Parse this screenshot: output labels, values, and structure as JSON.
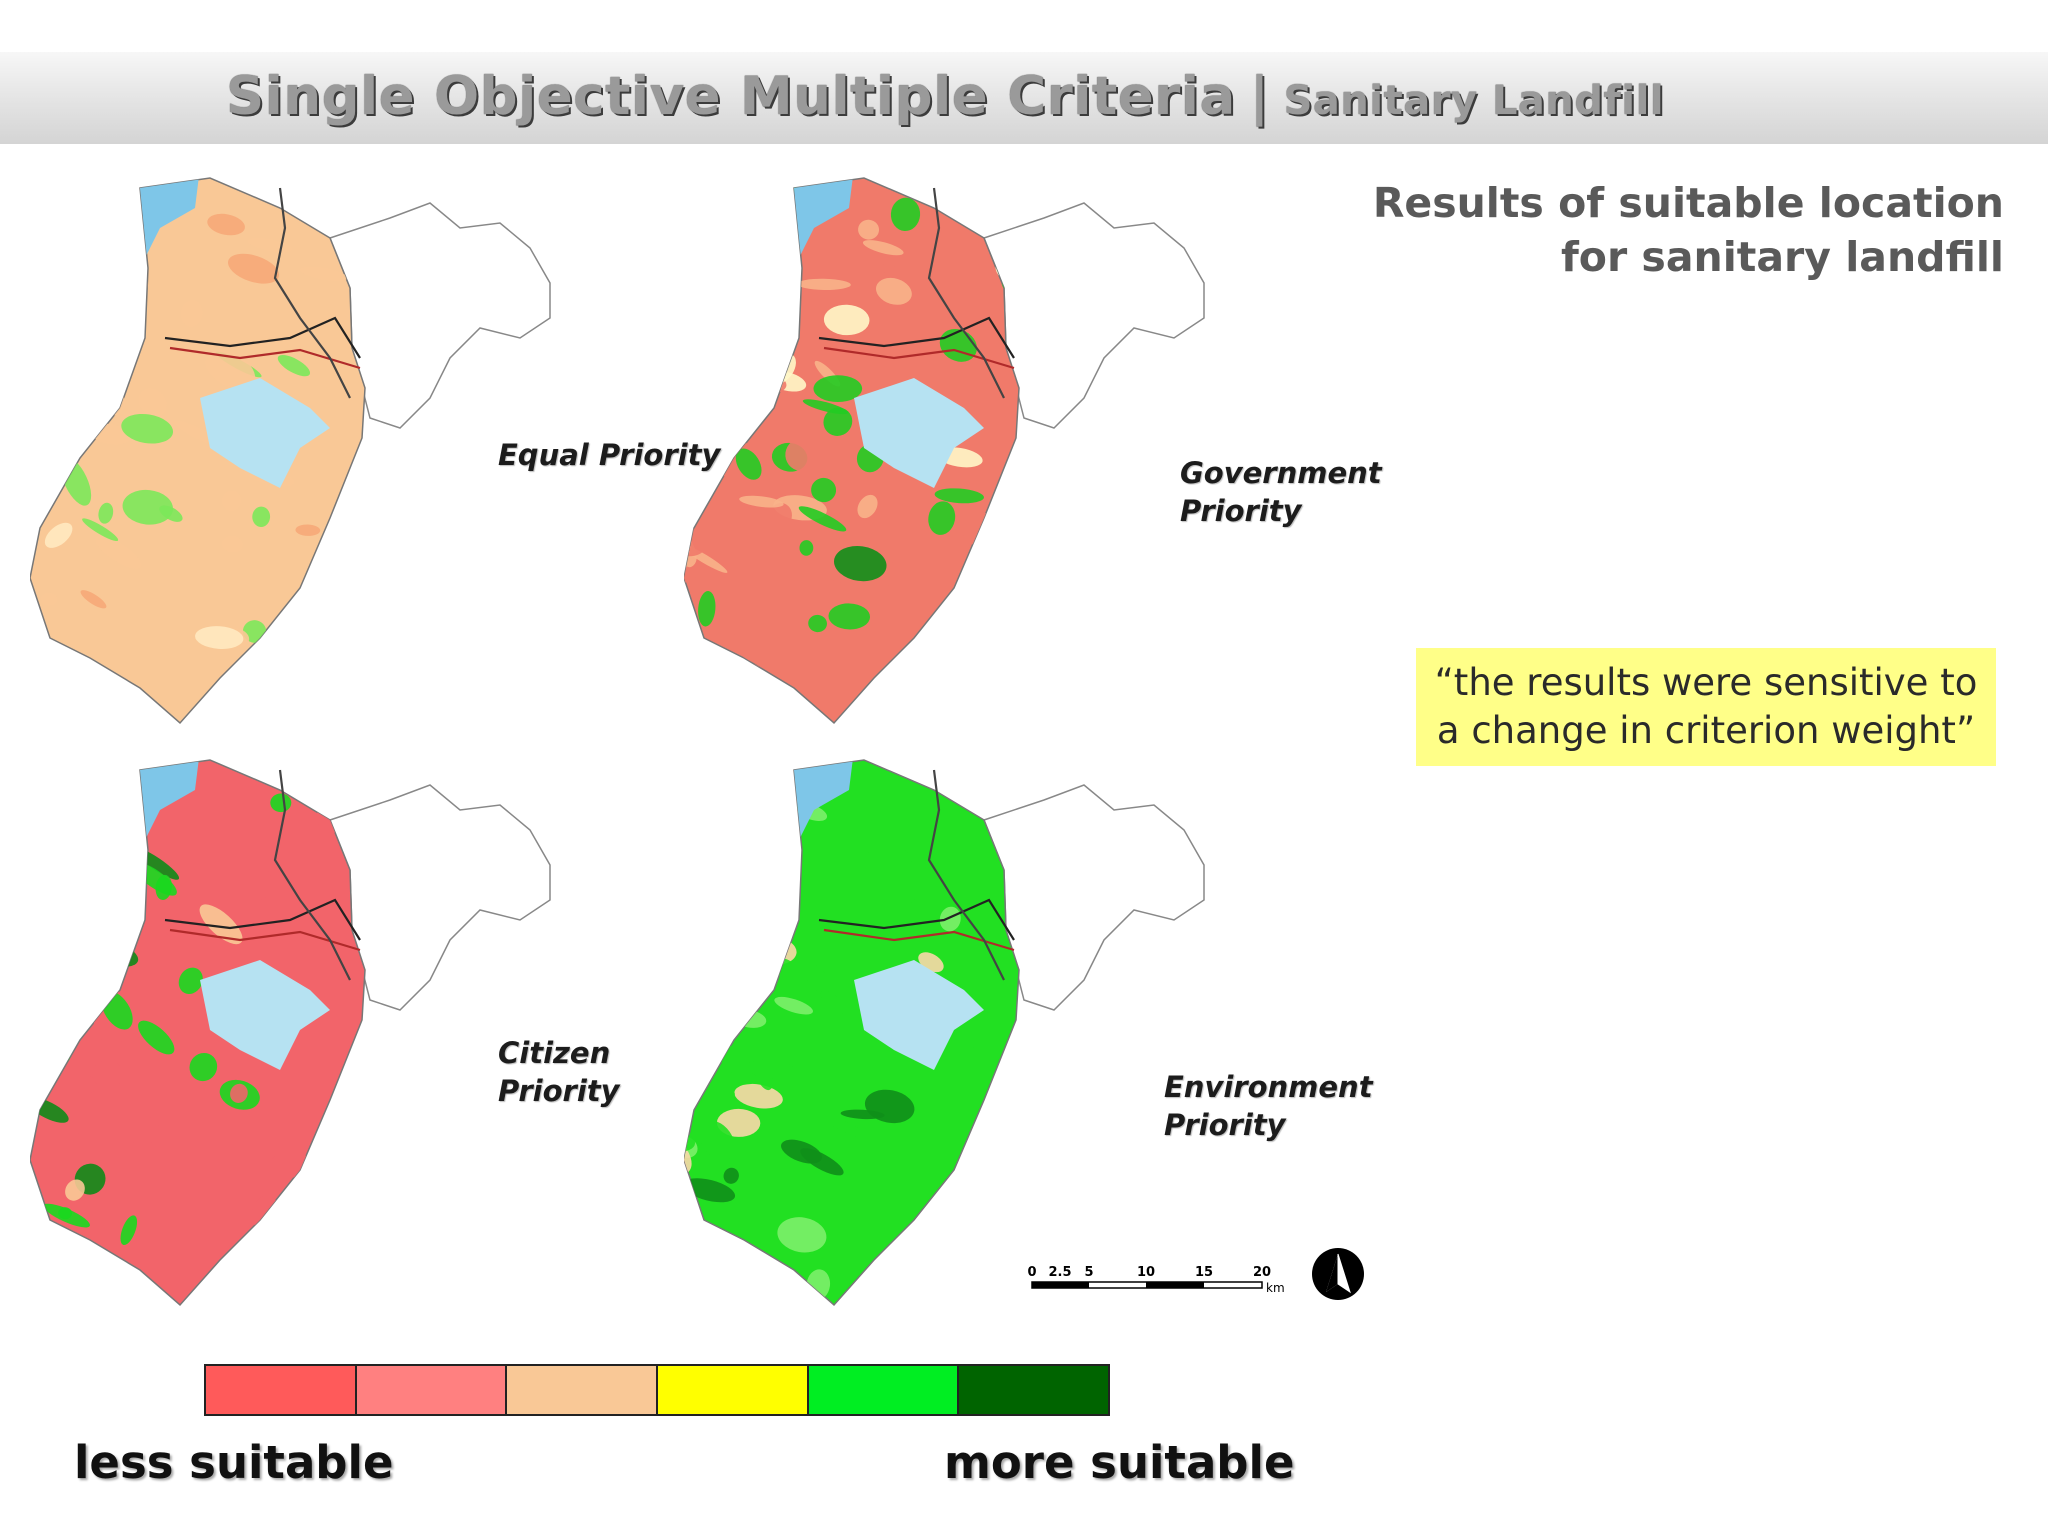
{
  "slide": {
    "title_main": "Single Objective Multiple Criteria",
    "title_separator": "|",
    "title_sub": "Sanitary Landfill",
    "results_line1": "Results of suitable location",
    "results_line2": "for sanitary landfill",
    "quote_line1": "“the results were sensitive to",
    "quote_line2": "a change in criterion weight”"
  },
  "maps": [
    {
      "label_line1": "Equal Priority",
      "label_line2": "",
      "dominant_scheme": "mixed-orange-green"
    },
    {
      "label_line1": "Government",
      "label_line2": "Priority",
      "dominant_scheme": "red-orange-green"
    },
    {
      "label_line1": "Citizen",
      "label_line2": "Priority",
      "dominant_scheme": "red-green"
    },
    {
      "label_line1": "Environment",
      "label_line2": "Priority",
      "dominant_scheme": "green"
    }
  ],
  "legend": {
    "colors": [
      "#ff5a5a",
      "#ff8080",
      "#f9c896",
      "#ffff00",
      "#00ee22",
      "#006400"
    ],
    "less_label": "less suitable",
    "more_label": "more suitable"
  },
  "scale": {
    "ticks": [
      "0",
      "2.5",
      "5",
      "10",
      "15",
      "20"
    ],
    "unit": "km"
  },
  "north_icon": "north-arrow-icon"
}
